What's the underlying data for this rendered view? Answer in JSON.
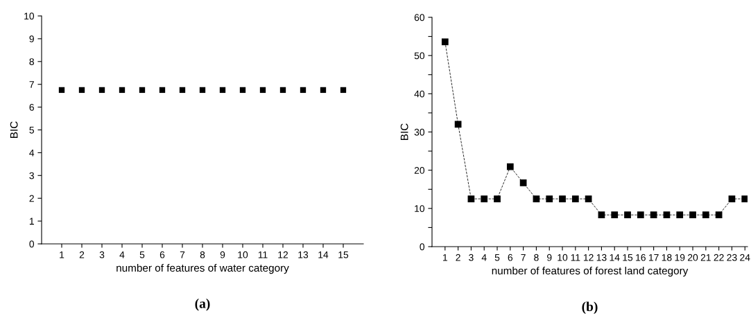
{
  "chart_data": [
    {
      "type": "scatter",
      "xlabel": "number of features of water category",
      "ylabel": "BIC",
      "annotations": [
        "(a)"
      ],
      "x": [
        1,
        2,
        3,
        4,
        5,
        6,
        7,
        8,
        9,
        10,
        11,
        12,
        13,
        14,
        15
      ],
      "series": [
        {
          "color": "#000000",
          "values": [
            6.75,
            6.75,
            6.75,
            6.75,
            6.75,
            6.75,
            6.75,
            6.75,
            6.75,
            6.75,
            6.75,
            6.75,
            6.75,
            6.75,
            6.75
          ]
        }
      ],
      "xlim": [
        0,
        16
      ],
      "xticks": [
        1,
        2,
        3,
        4,
        5,
        6,
        7,
        8,
        9,
        10,
        11,
        12,
        13,
        14,
        15
      ],
      "ylim": [
        0,
        10
      ],
      "yticks": [
        0,
        1,
        2,
        3,
        4,
        5,
        6,
        7,
        8,
        9,
        10
      ],
      "marker": "square",
      "grid": false,
      "legend": false
    },
    {
      "type": "line",
      "xlabel": "number of features of forest land category",
      "ylabel": "BIC",
      "annotations": [
        "(b)"
      ],
      "x": [
        1,
        2,
        3,
        4,
        5,
        6,
        7,
        8,
        9,
        10,
        11,
        12,
        13,
        14,
        15,
        16,
        17,
        18,
        19,
        20,
        21,
        22,
        23,
        24
      ],
      "series": [
        {
          "color": "#000000",
          "values": [
            53.6,
            32,
            12.5,
            12.5,
            12.5,
            20.9,
            16.7,
            12.5,
            12.5,
            12.5,
            12.5,
            12.5,
            8.3,
            8.3,
            8.3,
            8.3,
            8.3,
            8.3,
            8.3,
            8.3,
            8.3,
            8.3,
            12.5,
            12.5
          ]
        }
      ],
      "xlim": [
        0,
        24.2
      ],
      "xticks": [
        1,
        2,
        3,
        4,
        5,
        6,
        7,
        8,
        9,
        10,
        11,
        12,
        13,
        14,
        15,
        16,
        17,
        18,
        19,
        20,
        21,
        22,
        23,
        24
      ],
      "ylim": [
        0,
        60
      ],
      "yticks": [
        0,
        {
          "value": 5,
          "label": null
        },
        10,
        {
          "value": 15,
          "label": null
        },
        20,
        {
          "value": 25,
          "label": null
        },
        30,
        {
          "value": 35,
          "label": null
        },
        40,
        {
          "value": 45,
          "label": null
        },
        50,
        {
          "value": 55,
          "label": null
        },
        60
      ],
      "marker": "square",
      "line_style": "dashed",
      "grid": false,
      "legend": false
    }
  ]
}
